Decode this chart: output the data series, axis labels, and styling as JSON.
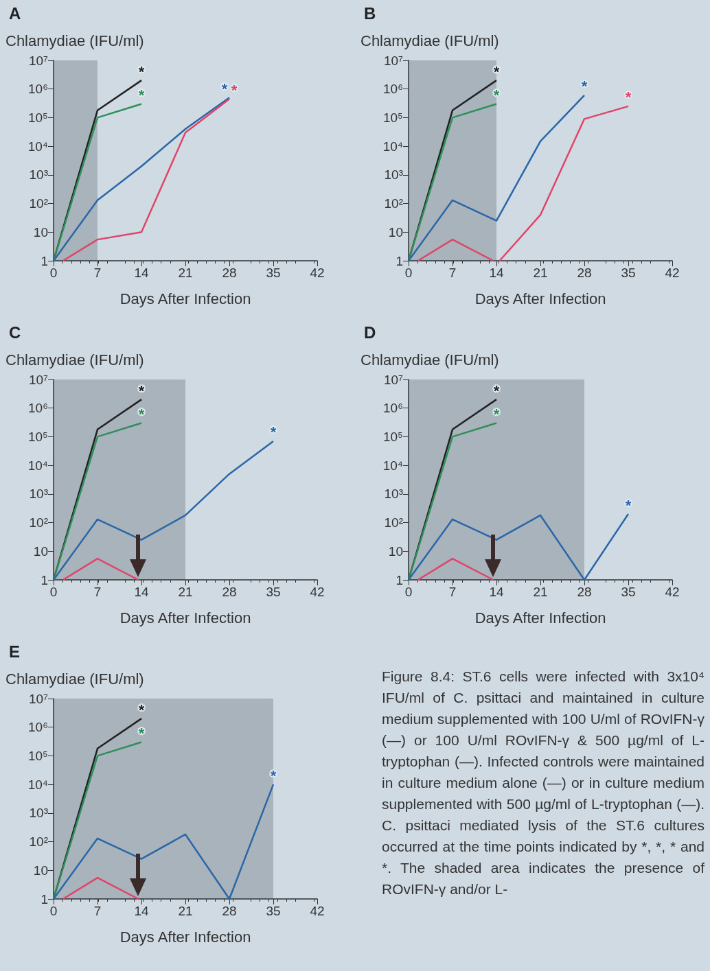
{
  "chart_data": [
    {
      "type": "line",
      "title": "A",
      "ylabel": "Chlamydiae (IFU/ml)",
      "xlabel": "Days After Infection",
      "log": "y",
      "marker": "none",
      "xlim": [
        0,
        42
      ],
      "xticks": [
        0,
        7,
        14,
        21,
        28,
        35,
        42
      ],
      "ylim": [
        1,
        10000000
      ],
      "yticks": [
        {
          "value": 1,
          "label": "1"
        },
        {
          "value": 10,
          "label": "10"
        },
        {
          "value": 100,
          "label": "10²"
        },
        {
          "value": 1000,
          "label": "10³"
        },
        {
          "value": 10000,
          "label": "10⁴"
        },
        {
          "value": 100000,
          "label": "10⁵"
        },
        {
          "value": 1000000,
          "label": "10⁶"
        },
        {
          "value": 10000000,
          "label": "10⁷"
        }
      ],
      "bands": [
        {
          "axis": "x",
          "from": 0,
          "to": 7,
          "color": "#a9b3bb"
        }
      ],
      "series": [
        {
          "color": "#222222",
          "x": [
            0,
            7,
            14
          ],
          "values": [
            1,
            180000,
            2000000
          ],
          "value_labels": [
            null,
            null,
            "*"
          ]
        },
        {
          "color": "#2f8f5b",
          "x": [
            0,
            7,
            14
          ],
          "values": [
            1,
            100000,
            300000
          ],
          "value_labels": [
            null,
            null,
            "*"
          ]
        },
        {
          "color": "#2a66a8",
          "x": [
            0,
            7,
            14,
            21,
            28
          ],
          "values": [
            1,
            130,
            2000,
            40000,
            500000
          ],
          "value_labels": [
            null,
            null,
            null,
            null,
            "*"
          ]
        },
        {
          "color": "#e04468",
          "x": [
            1.5,
            7,
            14,
            21,
            28
          ],
          "values": [
            1,
            5.5,
            10,
            30000,
            450000
          ],
          "value_labels": [
            null,
            null,
            null,
            null,
            "*"
          ]
        }
      ]
    },
    {
      "type": "line",
      "title": "B",
      "ylabel": "Chlamydiae (IFU/ml)",
      "xlabel": "Days After Infection",
      "log": "y",
      "marker": "none",
      "xlim": [
        0,
        42
      ],
      "xticks": [
        0,
        7,
        14,
        21,
        28,
        35,
        42
      ],
      "ylim": [
        1,
        10000000
      ],
      "yticks": [
        {
          "value": 1,
          "label": "1"
        },
        {
          "value": 10,
          "label": "10"
        },
        {
          "value": 100,
          "label": "10²"
        },
        {
          "value": 1000,
          "label": "10³"
        },
        {
          "value": 10000,
          "label": "10⁴"
        },
        {
          "value": 100000,
          "label": "10⁵"
        },
        {
          "value": 1000000,
          "label": "10⁶"
        },
        {
          "value": 10000000,
          "label": "10⁷"
        }
      ],
      "bands": [
        {
          "axis": "x",
          "from": 0,
          "to": 14,
          "color": "#a9b3bb"
        }
      ],
      "series": [
        {
          "color": "#222222",
          "x": [
            0,
            7,
            14
          ],
          "values": [
            1,
            180000,
            2000000
          ],
          "value_labels": [
            null,
            null,
            "*"
          ]
        },
        {
          "color": "#2f8f5b",
          "x": [
            0,
            7,
            14
          ],
          "values": [
            1,
            100000,
            300000
          ],
          "value_labels": [
            null,
            null,
            "*"
          ]
        },
        {
          "color": "#2a66a8",
          "x": [
            0,
            7,
            14,
            21,
            28
          ],
          "values": [
            1,
            130,
            25,
            15000,
            600000
          ],
          "value_labels": [
            null,
            null,
            null,
            null,
            "*"
          ]
        },
        {
          "color": "#e04468",
          "x": [
            1.5,
            7,
            13.5,
            14,
            14.5,
            21,
            28,
            35
          ],
          "values": [
            1,
            5.5,
            1,
            null,
            1,
            40,
            90000,
            250000
          ],
          "value_labels": [
            null,
            null,
            null,
            null,
            null,
            null,
            null,
            "*"
          ]
        }
      ]
    },
    {
      "type": "line",
      "title": "C",
      "ylabel": "Chlamydiae (IFU/ml)",
      "xlabel": "Days After Infection",
      "log": "y",
      "marker": "none",
      "xlim": [
        0,
        42
      ],
      "xticks": [
        0,
        7,
        14,
        21,
        28,
        35,
        42
      ],
      "ylim": [
        1,
        10000000
      ],
      "yticks": [
        {
          "value": 1,
          "label": "1"
        },
        {
          "value": 10,
          "label": "10"
        },
        {
          "value": 100,
          "label": "10²"
        },
        {
          "value": 1000,
          "label": "10³"
        },
        {
          "value": 10000,
          "label": "10⁴"
        },
        {
          "value": 100000,
          "label": "10⁵"
        },
        {
          "value": 1000000,
          "label": "10⁶"
        },
        {
          "value": 10000000,
          "label": "10⁷"
        }
      ],
      "bands": [
        {
          "axis": "x",
          "from": 0,
          "to": 21,
          "color": "#a9b3bb"
        }
      ],
      "series": [
        {
          "color": "#222222",
          "x": [
            0,
            7,
            14
          ],
          "values": [
            1,
            180000,
            2000000
          ],
          "value_labels": [
            null,
            null,
            "*"
          ]
        },
        {
          "color": "#2f8f5b",
          "x": [
            0,
            7,
            14
          ],
          "values": [
            1,
            100000,
            300000
          ],
          "value_labels": [
            null,
            null,
            "*"
          ]
        },
        {
          "color": "#2a66a8",
          "x": [
            0,
            7,
            14,
            21,
            28,
            35
          ],
          "values": [
            1,
            130,
            25,
            180,
            5000,
            70000
          ],
          "value_labels": [
            null,
            null,
            null,
            null,
            null,
            "*"
          ]
        },
        {
          "color": "#e04468",
          "x": [
            1.5,
            7,
            13.5
          ],
          "values": [
            1,
            5.5,
            1
          ]
        }
      ]
    },
    {
      "type": "line",
      "title": "D",
      "ylabel": "Chlamydiae (IFU/ml)",
      "xlabel": "Days After Infection",
      "log": "y",
      "marker": "none",
      "xlim": [
        0,
        42
      ],
      "xticks": [
        0,
        7,
        14,
        21,
        28,
        35,
        42
      ],
      "ylim": [
        1,
        10000000
      ],
      "yticks": [
        {
          "value": 1,
          "label": "1"
        },
        {
          "value": 10,
          "label": "10"
        },
        {
          "value": 100,
          "label": "10²"
        },
        {
          "value": 1000,
          "label": "10³"
        },
        {
          "value": 10000,
          "label": "10⁴"
        },
        {
          "value": 100000,
          "label": "10⁵"
        },
        {
          "value": 1000000,
          "label": "10⁶"
        },
        {
          "value": 10000000,
          "label": "10⁷"
        }
      ],
      "bands": [
        {
          "axis": "x",
          "from": 0,
          "to": 28,
          "color": "#a9b3bb"
        }
      ],
      "series": [
        {
          "color": "#222222",
          "x": [
            0,
            7,
            14
          ],
          "values": [
            1,
            180000,
            2000000
          ],
          "value_labels": [
            null,
            null,
            "*"
          ]
        },
        {
          "color": "#2f8f5b",
          "x": [
            0,
            7,
            14
          ],
          "values": [
            1,
            100000,
            300000
          ],
          "value_labels": [
            null,
            null,
            "*"
          ]
        },
        {
          "color": "#2a66a8",
          "x": [
            0,
            7,
            14,
            21,
            28,
            35
          ],
          "values": [
            1,
            130,
            25,
            180,
            1,
            200
          ],
          "value_labels": [
            null,
            null,
            null,
            null,
            null,
            "*"
          ]
        },
        {
          "color": "#e04468",
          "x": [
            1.5,
            7,
            13.5
          ],
          "values": [
            1,
            5.5,
            1
          ]
        }
      ]
    },
    {
      "type": "line",
      "title": "E",
      "ylabel": "Chlamydiae (IFU/ml)",
      "xlabel": "Days After Infection",
      "log": "y",
      "marker": "none",
      "xlim": [
        0,
        42
      ],
      "xticks": [
        0,
        7,
        14,
        21,
        28,
        35,
        42
      ],
      "ylim": [
        1,
        10000000
      ],
      "yticks": [
        {
          "value": 1,
          "label": "1"
        },
        {
          "value": 10,
          "label": "10"
        },
        {
          "value": 100,
          "label": "10²"
        },
        {
          "value": 1000,
          "label": "10³"
        },
        {
          "value": 10000,
          "label": "10⁴"
        },
        {
          "value": 100000,
          "label": "10⁵"
        },
        {
          "value": 1000000,
          "label": "10⁶"
        },
        {
          "value": 10000000,
          "label": "10⁷"
        }
      ],
      "bands": [
        {
          "axis": "x",
          "from": 0,
          "to": 35,
          "color": "#a9b3bb"
        }
      ],
      "series": [
        {
          "color": "#222222",
          "x": [
            0,
            7,
            14
          ],
          "values": [
            1,
            180000,
            2000000
          ],
          "value_labels": [
            null,
            null,
            "*"
          ]
        },
        {
          "color": "#2f8f5b",
          "x": [
            0,
            7,
            14
          ],
          "values": [
            1,
            100000,
            300000
          ],
          "value_labels": [
            null,
            null,
            "*"
          ]
        },
        {
          "color": "#2a66a8",
          "x": [
            0,
            7,
            14,
            21,
            28,
            35
          ],
          "values": [
            1,
            130,
            25,
            180,
            1,
            10000
          ],
          "value_labels": [
            null,
            null,
            null,
            null,
            null,
            "*"
          ]
        },
        {
          "color": "#e04468",
          "x": [
            1.5,
            7,
            13.5
          ],
          "values": [
            1,
            5.5,
            1
          ]
        }
      ],
      "annotations": [
        "Figure 8.4: ST.6 cells were infected with 3x10⁴ IFU/ml of C. psittaci and maintained in culture medium supplemented with 100 U/ml of ROvIFN-γ (—) or 100 U/ml ROvIFN-γ & 500 µg/ml of L-tryptophan (—). Infected controls were maintained in culture medium alone (—) or in culture medium supplemented with 500 µg/ml of L-tryptophan (—). C. psittaci mediated lysis of the ST.6 cultures occurred at the time points indicated by *, *, * and *. The shaded area indicates the presence of ROvIFN-γ and/or L-"
      ]
    }
  ]
}
